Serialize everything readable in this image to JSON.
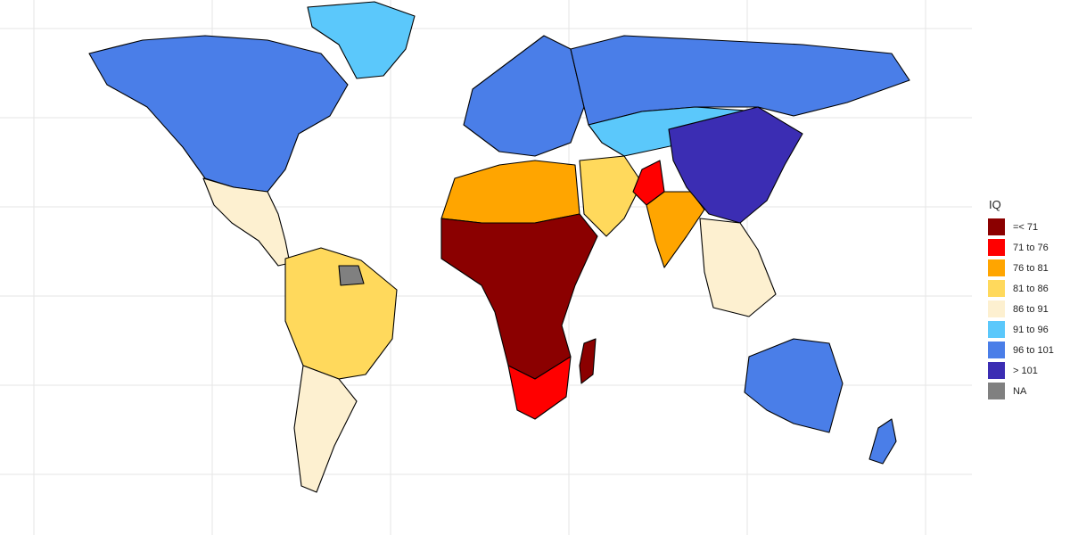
{
  "legend": {
    "title": "IQ",
    "items": [
      {
        "label": "=< 71",
        "color": "#8b0000"
      },
      {
        "label": "71 to 76",
        "color": "#ff0000"
      },
      {
        "label": "76 to 81",
        "color": "#ffa500"
      },
      {
        "label": "81 to 86",
        "color": "#ffd95c"
      },
      {
        "label": "86 to 91",
        "color": "#fdf0d0"
      },
      {
        "label": "91 to 96",
        "color": "#5bc8fb"
      },
      {
        "label": "96 to 101",
        "color": "#4a7ee8"
      },
      {
        "label": "> 101",
        "color": "#3b2db3"
      },
      {
        "label": "NA",
        "color": "#808080"
      }
    ]
  },
  "regions": [
    {
      "name": "north-america",
      "band": "96 to 101"
    },
    {
      "name": "greenland",
      "band": "91 to 96"
    },
    {
      "name": "mexico-central-america",
      "band": "86 to 91"
    },
    {
      "name": "south-america",
      "band": "81 to 86"
    },
    {
      "name": "southern-cone",
      "band": "86 to 91"
    },
    {
      "name": "europe",
      "band": "96 to 101"
    },
    {
      "name": "russia",
      "band": "96 to 101"
    },
    {
      "name": "central-asia",
      "band": "91 to 96"
    },
    {
      "name": "north-africa",
      "band": "76 to 81"
    },
    {
      "name": "middle-east",
      "band": "81 to 86"
    },
    {
      "name": "sub-saharan-africa",
      "band": "=< 71"
    },
    {
      "name": "southern-africa",
      "band": "71 to 76"
    },
    {
      "name": "madagascar",
      "band": "=< 71"
    },
    {
      "name": "india",
      "band": "76 to 81"
    },
    {
      "name": "pakistan",
      "band": "71 to 76"
    },
    {
      "name": "east-asia",
      "band": "> 101"
    },
    {
      "name": "southeast-asia",
      "band": "86 to 91"
    },
    {
      "name": "australia",
      "band": "96 to 101"
    },
    {
      "name": "new-zealand",
      "band": "96 to 101"
    },
    {
      "name": "guianas",
      "band": "NA"
    }
  ]
}
